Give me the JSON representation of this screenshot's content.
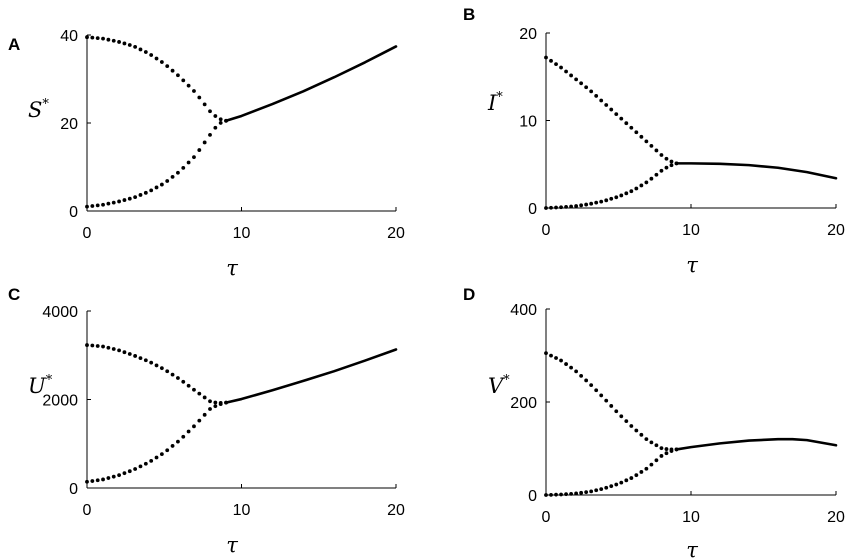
{
  "chart_data": [
    {
      "panel": "A",
      "type": "line",
      "xlabel": "τ",
      "ylabel": "S",
      "ylabel_sup": "*",
      "xlim": [
        0,
        20
      ],
      "ylim": [
        0,
        40
      ],
      "xticks": [
        "0",
        "10",
        "20"
      ],
      "yticks": [
        "0",
        "20",
        "40"
      ],
      "series": [
        {
          "style": "dotted",
          "x": [
            0,
            1,
            2,
            3,
            4,
            5,
            6,
            7,
            8,
            8.5,
            9
          ],
          "y": [
            39.5,
            39.2,
            38.5,
            37.5,
            35.8,
            33.5,
            30.5,
            27,
            22.5,
            21,
            20.5
          ]
        },
        {
          "style": "dotted",
          "x": [
            0,
            1,
            2,
            3,
            4,
            5,
            6,
            7,
            8,
            8.5,
            9
          ],
          "y": [
            1,
            1.4,
            2.1,
            3,
            4.4,
            6.3,
            9,
            12.5,
            17.5,
            19.8,
            20.5
          ]
        },
        {
          "style": "solid",
          "x": [
            9,
            10,
            12,
            14,
            16,
            18,
            20
          ],
          "y": [
            20.5,
            21.6,
            24.3,
            27.2,
            30.4,
            33.8,
            37.4
          ]
        }
      ]
    },
    {
      "panel": "B",
      "type": "line",
      "xlabel": "τ",
      "ylabel": "I",
      "ylabel_sup": "*",
      "xlim": [
        0,
        20
      ],
      "ylim": [
        0,
        20
      ],
      "xticks": [
        "0",
        "10",
        "20"
      ],
      "yticks": [
        "0",
        "10",
        "20"
      ],
      "series": [
        {
          "style": "dotted",
          "x": [
            0,
            1,
            2,
            3,
            4,
            5,
            6,
            7,
            8,
            8.5,
            9
          ],
          "y": [
            17.2,
            16.1,
            14.8,
            13.5,
            12,
            10.5,
            9,
            7.5,
            6,
            5.4,
            5.1
          ]
        },
        {
          "style": "dotted",
          "x": [
            0,
            1,
            2,
            3,
            4,
            5,
            6,
            7,
            8,
            8.5,
            9
          ],
          "y": [
            0,
            0.08,
            0.2,
            0.45,
            0.8,
            1.3,
            2,
            3,
            4.3,
            4.8,
            5.1
          ]
        },
        {
          "style": "solid",
          "x": [
            9,
            10,
            12,
            14,
            16,
            18,
            20
          ],
          "y": [
            5.1,
            5.1,
            5.05,
            4.9,
            4.6,
            4.1,
            3.4
          ]
        }
      ]
    },
    {
      "panel": "C",
      "type": "line",
      "xlabel": "τ",
      "ylabel": "U",
      "ylabel_sup": "*",
      "xlim": [
        0,
        20
      ],
      "ylim": [
        0,
        4000
      ],
      "xticks": [
        "0",
        "10",
        "20"
      ],
      "yticks": [
        "0",
        "2000",
        "4000"
      ],
      "series": [
        {
          "style": "dotted",
          "x": [
            0,
            1,
            2,
            3,
            4,
            5,
            6,
            7,
            8,
            8.5,
            9
          ],
          "y": [
            3230,
            3200,
            3120,
            3000,
            2860,
            2680,
            2460,
            2200,
            1950,
            1920,
            1930
          ]
        },
        {
          "style": "dotted",
          "x": [
            0,
            1,
            2,
            3,
            4,
            5,
            6,
            7,
            8,
            8.5,
            9
          ],
          "y": [
            140,
            190,
            280,
            410,
            580,
            800,
            1080,
            1420,
            1800,
            1880,
            1930
          ]
        },
        {
          "style": "solid",
          "x": [
            9,
            10,
            12,
            14,
            16,
            18,
            20
          ],
          "y": [
            1930,
            2010,
            2210,
            2420,
            2640,
            2880,
            3130
          ]
        }
      ]
    },
    {
      "panel": "D",
      "type": "line",
      "xlabel": "τ",
      "ylabel": "V",
      "ylabel_sup": "*",
      "xlim": [
        0,
        20
      ],
      "ylim": [
        0,
        400
      ],
      "xticks": [
        "0",
        "10",
        "20"
      ],
      "yticks": [
        "0",
        "200",
        "400"
      ],
      "series": [
        {
          "style": "dotted",
          "x": [
            0,
            1,
            2,
            3,
            4,
            5,
            6,
            7,
            8,
            8.5,
            9
          ],
          "y": [
            305,
            290,
            268,
            240,
            208,
            175,
            145,
            118,
            100,
            98,
            98
          ]
        },
        {
          "style": "dotted",
          "x": [
            0,
            1,
            2,
            3,
            4,
            5,
            6,
            7,
            8,
            8.5,
            9
          ],
          "y": [
            0,
            1,
            3,
            7,
            14,
            24,
            38,
            58,
            85,
            93,
            98
          ]
        },
        {
          "style": "solid",
          "x": [
            9,
            10,
            12,
            14,
            16,
            17,
            18,
            20
          ],
          "y": [
            98,
            103,
            111,
            117,
            120,
            120,
            118,
            107
          ]
        }
      ]
    }
  ]
}
